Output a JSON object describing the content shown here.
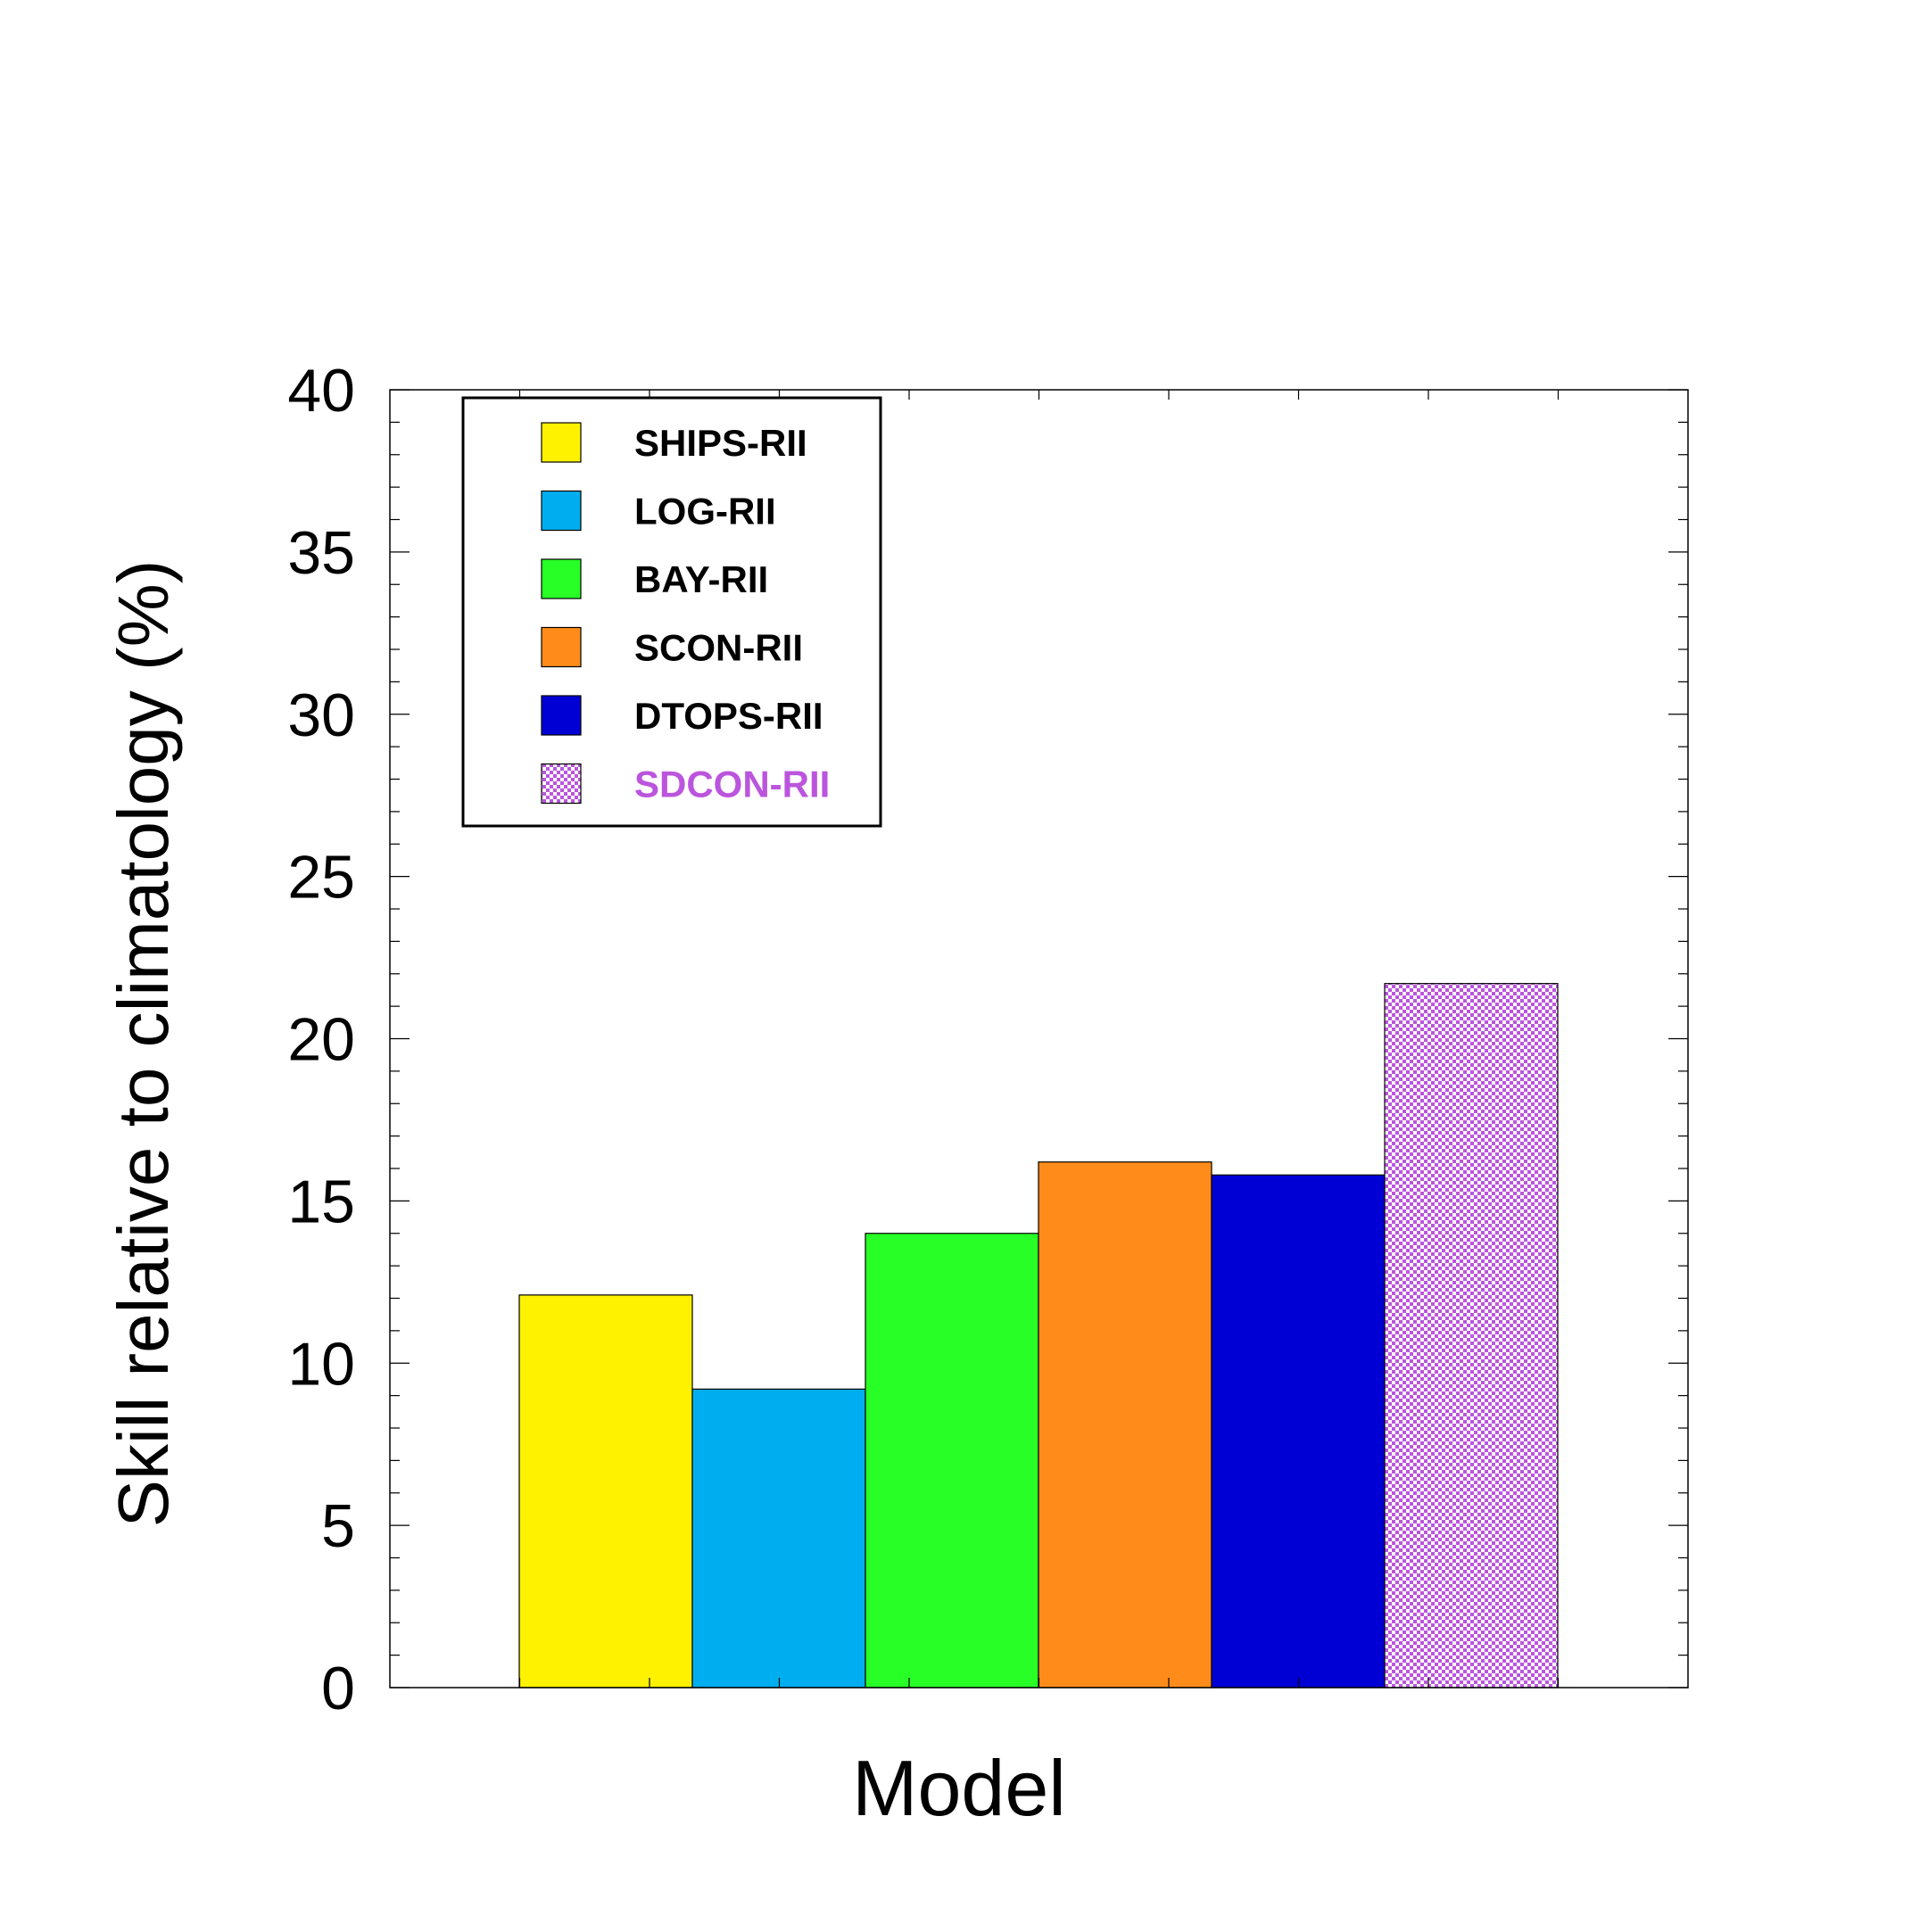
{
  "chart_data": {
    "type": "bar",
    "xlabel": "Model",
    "ylabel": "Skill relative to climatology (%)",
    "ylim": [
      0,
      40
    ],
    "y_major_step": 5,
    "y_minor_step": 1,
    "grid": false,
    "legend_position": "top-left",
    "categories": [
      "SHIPS-RII",
      "LOG-RII",
      "BAY-RII",
      "SCON-RII",
      "DTOPS-RII",
      "SDCON-RII"
    ],
    "values": [
      12.1,
      9.2,
      14.0,
      16.2,
      15.8,
      21.7
    ],
    "colors": [
      "#FFF200",
      "#00AEEF",
      "#27FF27",
      "#FF8C1A",
      "#0000D4",
      "#BB55DD"
    ],
    "patterns": [
      "solid",
      "solid",
      "solid",
      "solid",
      "solid",
      "checker"
    ],
    "legend_label_colors": [
      "#000000",
      "#000000",
      "#000000",
      "#000000",
      "#000000",
      "#BB55DD"
    ],
    "y_tick_labels": [
      "0",
      "5",
      "10",
      "15",
      "20",
      "25",
      "30",
      "35",
      "40"
    ]
  }
}
